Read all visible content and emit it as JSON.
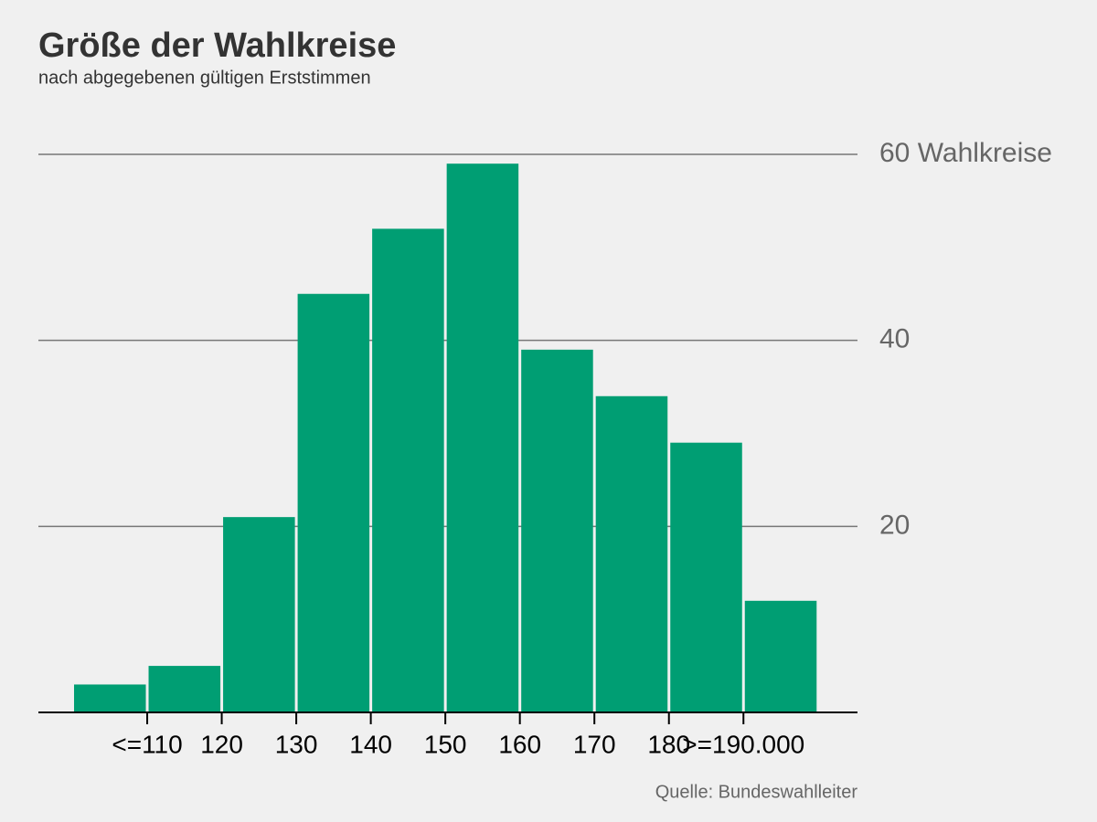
{
  "chart_data": {
    "type": "histogram",
    "title": "Größe der Wahlkreise",
    "subtitle": "nach abgegebenen gültigen Erststimmen",
    "source": "Quelle: Bundeswahlleiter",
    "bins": [
      100,
      110,
      120,
      130,
      140,
      150,
      160,
      170,
      180,
      190,
      200
    ],
    "values": [
      3,
      5,
      21,
      45,
      52,
      59,
      39,
      34,
      29,
      12
    ],
    "color": "#009e73",
    "xlim": [
      95.4,
      205.3
    ],
    "xticks": [
      {
        "value": 110,
        "label": "<=110"
      },
      120,
      130,
      140,
      150,
      160,
      170,
      180,
      {
        "value": 190,
        "label": ">=190.000"
      }
    ],
    "ylim": [
      0,
      60
    ],
    "yticks": [
      20,
      40,
      {
        "value": 60,
        "label": "60 Wahlkreise"
      }
    ],
    "grid": true
  }
}
